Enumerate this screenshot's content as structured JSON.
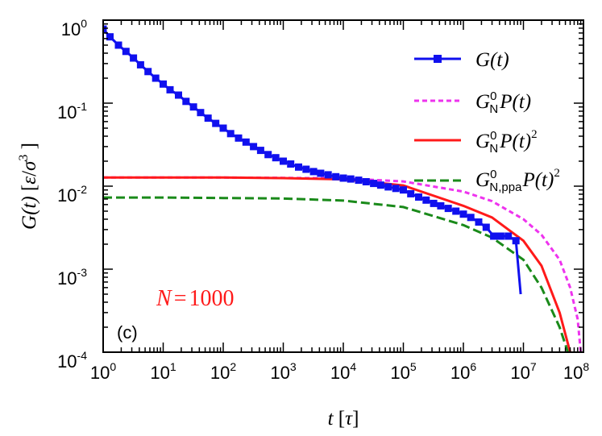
{
  "chart_data": {
    "type": "line",
    "panel_label": "(c)",
    "annotation": {
      "label": "N",
      "equals": "=",
      "value": "1000",
      "color": "#ff1a1a"
    },
    "xaxis": {
      "label_var": "t",
      "label_unit": "τ",
      "scale": "log",
      "range": [
        1,
        100000000
      ],
      "ticks": [
        {
          "value": 1,
          "base": "10",
          "exp": "0"
        },
        {
          "value": 10,
          "base": "10",
          "exp": "1"
        },
        {
          "value": 100,
          "base": "10",
          "exp": "2"
        },
        {
          "value": 1000,
          "base": "10",
          "exp": "3"
        },
        {
          "value": 10000,
          "base": "10",
          "exp": "4"
        },
        {
          "value": 100000,
          "base": "10",
          "exp": "5"
        },
        {
          "value": 1000000,
          "base": "10",
          "exp": "6"
        },
        {
          "value": 10000000,
          "base": "10",
          "exp": "7"
        },
        {
          "value": 100000000,
          "base": "10",
          "exp": "8"
        }
      ]
    },
    "yaxis": {
      "label_func": "G(t)",
      "label_unit_num": "ε",
      "label_unit_den": "σ",
      "label_unit_exp": "3",
      "scale": "log",
      "range": [
        0.0001,
        1
      ],
      "ticks": [
        {
          "value": 1,
          "base": "10",
          "exp": "0"
        },
        {
          "value": 0.1,
          "base": "10",
          "exp": "-1"
        },
        {
          "value": 0.01,
          "base": "10",
          "exp": "-2"
        },
        {
          "value": 0.001,
          "base": "10",
          "exp": "-3"
        },
        {
          "value": 0.0001,
          "base": "10",
          "exp": "-4"
        }
      ]
    },
    "series": [
      {
        "name": "G(t)",
        "legend": {
          "main": "G",
          "arg": "(t)"
        },
        "color": "#1010ee",
        "style": "solid",
        "marker": "square",
        "x": [
          1,
          1.3,
          1.8,
          2.4,
          3.2,
          4.2,
          5.6,
          7.5,
          10,
          13,
          18,
          24,
          32,
          42,
          56,
          75,
          100,
          133,
          180,
          240,
          320,
          420,
          560,
          750,
          1000,
          1330,
          1800,
          2400,
          3200,
          4200,
          5600,
          7500,
          10000,
          13300,
          18000,
          24000,
          32000,
          42000,
          56000,
          75000,
          100000,
          133000,
          180000,
          240000,
          320000,
          420000,
          560000,
          750000,
          1000000,
          1330000,
          1800000,
          2400000,
          3200000,
          4200000,
          5600000,
          7500000,
          9000000
        ],
        "y": [
          0.78,
          0.63,
          0.5,
          0.42,
          0.35,
          0.29,
          0.24,
          0.2,
          0.17,
          0.145,
          0.125,
          0.105,
          0.09,
          0.077,
          0.066,
          0.057,
          0.05,
          0.043,
          0.038,
          0.034,
          0.03,
          0.027,
          0.024,
          0.022,
          0.02,
          0.0185,
          0.017,
          0.016,
          0.015,
          0.0143,
          0.0137,
          0.013,
          0.0125,
          0.0122,
          0.0118,
          0.0113,
          0.0108,
          0.0103,
          0.0098,
          0.0094,
          0.009,
          0.0081,
          0.0074,
          0.0068,
          0.0062,
          0.0058,
          0.0054,
          0.005,
          0.0046,
          0.0042,
          0.0037,
          0.0032,
          0.0025,
          0.0025,
          0.0025,
          0.0022,
          0.0005
        ]
      },
      {
        "name": "G_N^0 P(t)",
        "legend": {
          "main": "G",
          "sub": "N",
          "sup": "0",
          "tail": "P(t)"
        },
        "color": "#ee33ee",
        "style": "short-dash",
        "x": [
          1,
          10,
          100,
          1000,
          10000,
          100000,
          1000000,
          3000000,
          10000000,
          20000000,
          40000000,
          60000000,
          80000000,
          90000000
        ],
        "y": [
          0.0127,
          0.0127,
          0.0127,
          0.0126,
          0.0124,
          0.0114,
          0.0086,
          0.0066,
          0.004,
          0.0026,
          0.0013,
          0.0006,
          0.00025,
          0.0001
        ]
      },
      {
        "name": "G_N^0 P(t)^2",
        "legend": {
          "main": "G",
          "sub": "N",
          "sup": "0",
          "tail": "P(t)",
          "tailsup": "2"
        },
        "color": "#ff1a1a",
        "style": "solid",
        "x": [
          1,
          10,
          100,
          1000,
          10000,
          100000,
          1000000,
          3000000,
          10000000,
          20000000,
          40000000,
          60000000
        ],
        "y": [
          0.0127,
          0.0127,
          0.0127,
          0.0125,
          0.0121,
          0.0102,
          0.0058,
          0.0042,
          0.0022,
          0.0011,
          0.0003,
          0.0001
        ]
      },
      {
        "name": "G_N,ppa^0 P(t)^2",
        "legend": {
          "main": "G",
          "sub": "N,ppa",
          "sup": "0",
          "tail": "P(t)",
          "tailsup": "2"
        },
        "color": "#1a8a1a",
        "style": "long-dash",
        "x": [
          1,
          10,
          100,
          1000,
          10000,
          100000,
          1000000,
          3000000,
          10000000,
          20000000,
          40000000,
          55000000
        ],
        "y": [
          0.0073,
          0.0073,
          0.0072,
          0.0071,
          0.0067,
          0.0056,
          0.0034,
          0.0024,
          0.0013,
          0.0006,
          0.0002,
          0.0001
        ]
      }
    ]
  }
}
